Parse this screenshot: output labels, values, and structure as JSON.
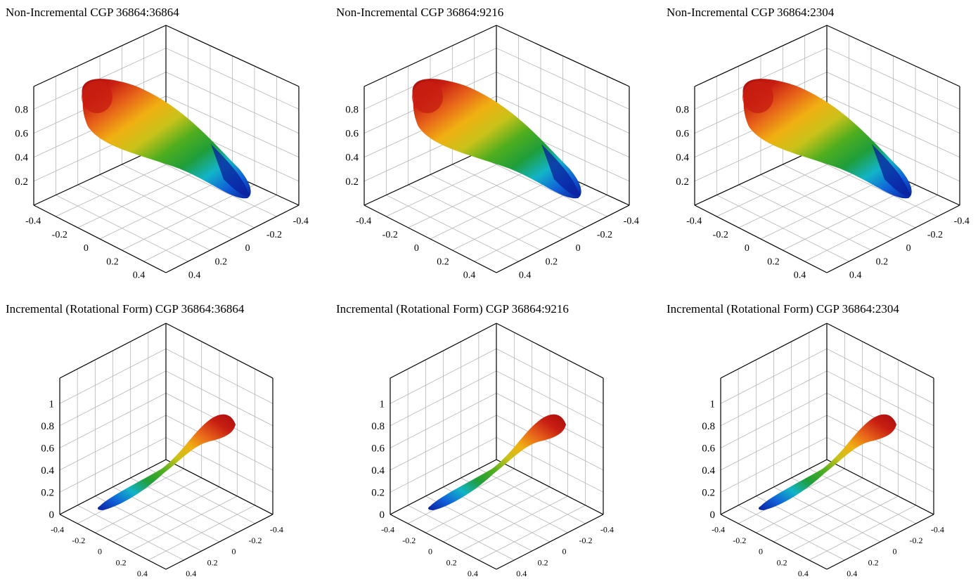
{
  "panels": [
    {
      "title": "Non-Incremental CGP 36864:36864",
      "row": 0,
      "col": 0,
      "shape": "lobe",
      "z_ticks": [
        "0.2",
        "0.4",
        "0.6",
        "0.8"
      ],
      "x_ticks": [
        "-0.4",
        "-0.2",
        "0",
        "0.2",
        "0.4"
      ],
      "y_ticks": [
        "-0.4",
        "-0.2",
        "0",
        "0.2",
        "0.4"
      ]
    },
    {
      "title": "Non-Incremental CGP 36864:9216",
      "row": 0,
      "col": 1,
      "shape": "lobe",
      "z_ticks": [
        "0.2",
        "0.4",
        "0.6",
        "0.8"
      ],
      "x_ticks": [
        "-0.4",
        "-0.2",
        "0",
        "0.2",
        "0.4"
      ],
      "y_ticks": [
        "-0.4",
        "-0.2",
        "0",
        "0.2",
        "0.4"
      ]
    },
    {
      "title": "Non-Incremental CGP 36864:2304",
      "row": 0,
      "col": 2,
      "shape": "lobe",
      "z_ticks": [
        "0.2",
        "0.4",
        "0.6",
        "0.8"
      ],
      "x_ticks": [
        "-0.4",
        "-0.2",
        "0",
        "0.2",
        "0.4"
      ],
      "y_ticks": [
        "-0.4",
        "-0.2",
        "0",
        "0.2",
        "0.4"
      ]
    },
    {
      "title": "Incremental (Rotational Form) CGP 36864:36864",
      "row": 1,
      "col": 0,
      "shape": "twist",
      "z_ticks": [
        "0",
        "0.2",
        "0.4",
        "0.6",
        "0.8",
        "1"
      ],
      "x_ticks": [
        "-0.4",
        "-0.2",
        "0",
        "0.2",
        "0.4"
      ],
      "y_ticks": [
        "-0.4",
        "-0.2",
        "0",
        "0.2",
        "0.4"
      ]
    },
    {
      "title": "Incremental (Rotational Form) CGP 36864:9216",
      "row": 1,
      "col": 1,
      "shape": "twist",
      "z_ticks": [
        "0",
        "0.2",
        "0.4",
        "0.6",
        "0.8",
        "1"
      ],
      "x_ticks": [
        "-0.4",
        "-0.2",
        "0",
        "0.2",
        "0.4"
      ],
      "y_ticks": [
        "-0.4",
        "-0.2",
        "0",
        "0.2",
        "0.4"
      ]
    },
    {
      "title": "Incremental (Rotational Form) CGP 36864:2304",
      "row": 1,
      "col": 2,
      "shape": "twist",
      "z_ticks": [
        "0",
        "0.2",
        "0.4",
        "0.6",
        "0.8",
        "1"
      ],
      "x_ticks": [
        "-0.4",
        "-0.2",
        "0",
        "0.2",
        "0.4"
      ],
      "y_ticks": [
        "-0.4",
        "-0.2",
        "0",
        "0.2",
        "0.4"
      ]
    }
  ],
  "colormap": [
    "#0a1f9e",
    "#1060d8",
    "#12b4c8",
    "#1f9e3a",
    "#4fae1e",
    "#c8c21a",
    "#f0b012",
    "#e8641a",
    "#c81e12",
    "#a80c0c"
  ]
}
